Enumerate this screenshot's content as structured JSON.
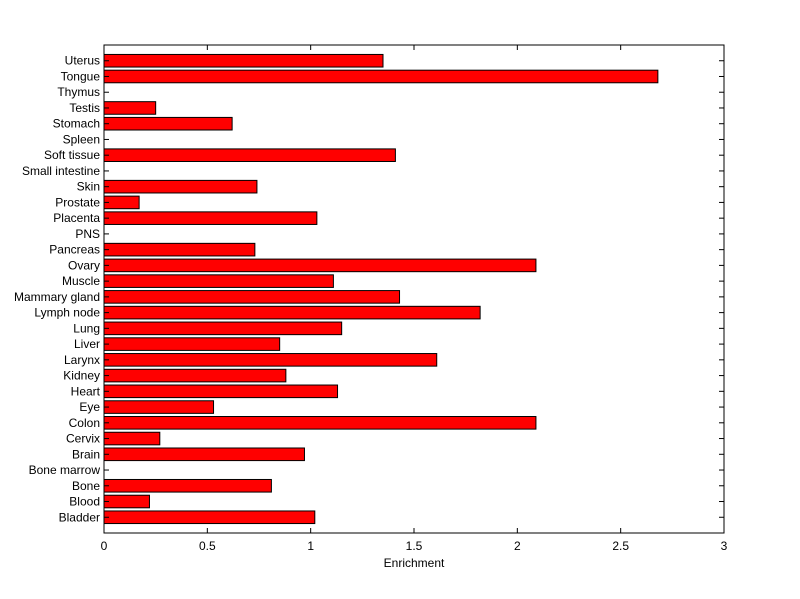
{
  "chart_data": {
    "type": "bar",
    "orientation": "horizontal",
    "title": "",
    "xlabel": "Enrichment",
    "ylabel": "",
    "xlim": [
      0,
      3
    ],
    "xticks": [
      "0",
      "0.5",
      "1",
      "1.5",
      "2",
      "2.5",
      "3"
    ],
    "grid": false,
    "bar_color": "#ff0000",
    "edge_color": "#000000",
    "categories": [
      "Bladder",
      "Blood",
      "Bone",
      "Bone marrow",
      "Brain",
      "Cervix",
      "Colon",
      "Eye",
      "Heart",
      "Kidney",
      "Larynx",
      "Liver",
      "Lung",
      "Lymph node",
      "Mammary gland",
      "Muscle",
      "Ovary",
      "Pancreas",
      "PNS",
      "Placenta",
      "Prostate",
      "Skin",
      "Small intestine",
      "Soft tissue",
      "Spleen",
      "Stomach",
      "Testis",
      "Thymus",
      "Tongue",
      "Uterus"
    ],
    "values": [
      1.02,
      0.22,
      0.81,
      0,
      0.97,
      0.27,
      2.09,
      0.53,
      1.13,
      0.88,
      1.61,
      0.85,
      1.15,
      1.82,
      1.43,
      1.11,
      2.09,
      0.73,
      0,
      1.03,
      0.17,
      0.74,
      0,
      1.41,
      0,
      0.62,
      0.25,
      0,
      2.68,
      1.35
    ]
  }
}
